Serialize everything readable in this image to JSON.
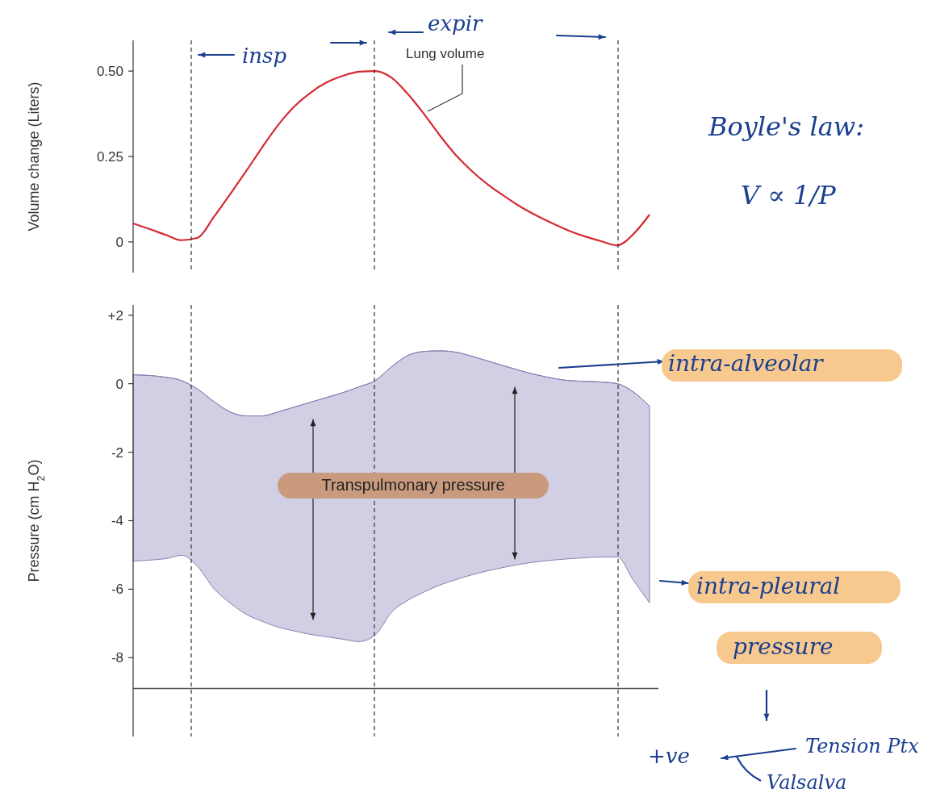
{
  "chart_data": [
    {
      "type": "line",
      "categories": [
        null,
        null,
        null,
        null,
        null,
        null,
        null,
        null,
        null,
        null,
        null,
        null,
        null,
        null,
        null,
        null,
        null,
        null,
        null,
        null,
        null,
        null,
        null,
        null,
        null,
        null,
        null,
        null,
        null,
        null,
        null,
        null,
        null
      ],
      "ylabel": "Volume change (Liters)",
      "ylim": [
        -0.09,
        0.59
      ],
      "yticks": [
        0,
        0.25,
        {
          "value": 0.5,
          "label": "0.50"
        }
      ],
      "tick_labels": "y",
      "series": [
        {
          "color": "#d62a34",
          "values": [
            0.054,
            0.038,
            0.021,
            0.005,
            0.012,
            0.073,
            0.139,
            0.207,
            0.277,
            0.343,
            0.397,
            0.437,
            0.467,
            0.486,
            0.498,
            0.5,
            0.481,
            0.434,
            0.376,
            0.312,
            0.254,
            0.207,
            0.167,
            0.134,
            0.103,
            0.077,
            0.054,
            0.033,
            0.016,
            0.002,
            -0.01,
            0.023,
            0.08
          ]
        }
      ],
      "annotations": [
        "Lung volume",
        "insp",
        "expir",
        "Boyle's law:",
        "V ∝ 1/P"
      ]
    },
    {
      "type": "line",
      "categories": [
        null,
        null,
        null,
        null,
        null,
        null,
        null,
        null,
        null,
        null,
        null,
        null,
        null,
        null,
        null,
        null,
        null,
        null,
        null,
        null,
        null,
        null,
        null,
        null,
        null,
        null,
        null,
        null,
        null,
        null,
        null,
        null,
        null
      ],
      "ylabel": "Pressure (cm H$_{2}$O)",
      "ylim": [
        -10.3,
        2.3
      ],
      "yticks": [
        {
          "value": 2,
          "label": "+2"
        },
        0,
        -2,
        -4,
        -6,
        -8
      ],
      "tick_labels": "y",
      "series": [
        {
          "color": "#8682b6",
          "values": [
            0.26,
            0.24,
            0.19,
            0.09,
            -0.16,
            -0.52,
            -0.82,
            -0.94,
            -0.94,
            -0.82,
            -0.68,
            -0.54,
            -0.4,
            -0.26,
            -0.09,
            0.09,
            0.49,
            0.82,
            0.94,
            0.96,
            0.92,
            0.8,
            0.66,
            0.52,
            0.38,
            0.26,
            0.16,
            0.09,
            0.07,
            0.05,
            0,
            -0.24,
            -0.66
          ],
          "upper": [
            0.26,
            0.24,
            0.19,
            0.09,
            -0.16,
            -0.52,
            -0.82,
            -0.94,
            -0.94,
            -0.82,
            -0.68,
            -0.54,
            -0.4,
            -0.26,
            -0.09,
            0.09,
            0.49,
            0.82,
            0.94,
            0.96,
            0.92,
            0.8,
            0.66,
            0.52,
            0.38,
            0.26,
            0.16,
            0.09,
            0.07,
            0.05,
            0,
            -0.24,
            -0.66
          ],
          "lower": [
            -5.18,
            -5.15,
            -5.11,
            -5.01,
            -5.34,
            -5.98,
            -6.4,
            -6.73,
            -6.94,
            -7.11,
            -7.22,
            -7.32,
            -7.39,
            -7.46,
            -7.53,
            -7.34,
            -6.68,
            -6.33,
            -6.09,
            -5.88,
            -5.72,
            -5.58,
            -5.46,
            -5.36,
            -5.27,
            -5.2,
            -5.15,
            -5.11,
            -5.08,
            -5.06,
            -5.06,
            -5.74,
            -6.4
          ]
        }
      ],
      "ref_lines": [
        {
          "axis": "y",
          "value": -8.9,
          "line_style": "solid",
          "color": "#555555"
        }
      ],
      "annotations": [
        "Transpulmonary pressure",
        "intra-alveolar",
        "intra-pleural pressure",
        "+ve",
        "Tension Ptx",
        "Valsalva"
      ]
    }
  ]
}
